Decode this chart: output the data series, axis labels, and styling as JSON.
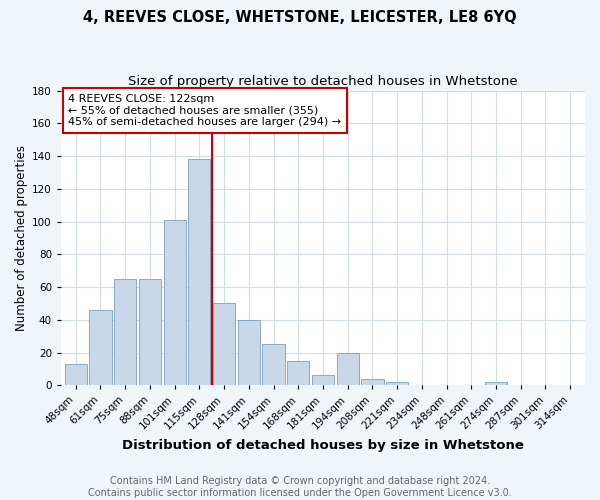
{
  "title": "4, REEVES CLOSE, WHETSTONE, LEICESTER, LE8 6YQ",
  "subtitle": "Size of property relative to detached houses in Whetstone",
  "xlabel": "Distribution of detached houses by size in Whetstone",
  "ylabel": "Number of detached properties",
  "categories": [
    "48sqm",
    "61sqm",
    "75sqm",
    "88sqm",
    "101sqm",
    "115sqm",
    "128sqm",
    "141sqm",
    "154sqm",
    "168sqm",
    "181sqm",
    "194sqm",
    "208sqm",
    "221sqm",
    "234sqm",
    "248sqm",
    "261sqm",
    "274sqm",
    "287sqm",
    "301sqm",
    "314sqm"
  ],
  "values": [
    13,
    46,
    65,
    65,
    101,
    138,
    50,
    40,
    25,
    15,
    6,
    20,
    4,
    2,
    0,
    0,
    0,
    2,
    0,
    0,
    0
  ],
  "bar_color": "#c8d8e8",
  "bar_edge_color": "#7aa0c0",
  "vline_x": 6.0,
  "vline_color": "#cc0000",
  "annotation_text": "4 REEVES CLOSE: 122sqm\n← 55% of detached houses are smaller (355)\n45% of semi-detached houses are larger (294) →",
  "annotation_box_color": "#ffffff",
  "annotation_box_edge_color": "#cc0000",
  "ylim": [
    0,
    180
  ],
  "yticks": [
    0,
    20,
    40,
    60,
    80,
    100,
    120,
    140,
    160,
    180
  ],
  "footer_line1": "Contains HM Land Registry data © Crown copyright and database right 2024.",
  "footer_line2": "Contains public sector information licensed under the Open Government Licence v3.0.",
  "background_color": "#f0f5fa",
  "plot_background_color": "#ffffff",
  "grid_color": "#d0dce8",
  "title_fontsize": 10.5,
  "subtitle_fontsize": 9.5,
  "xlabel_fontsize": 9.5,
  "ylabel_fontsize": 8.5,
  "tick_fontsize": 7.5,
  "annotation_fontsize": 8,
  "footer_fontsize": 7
}
